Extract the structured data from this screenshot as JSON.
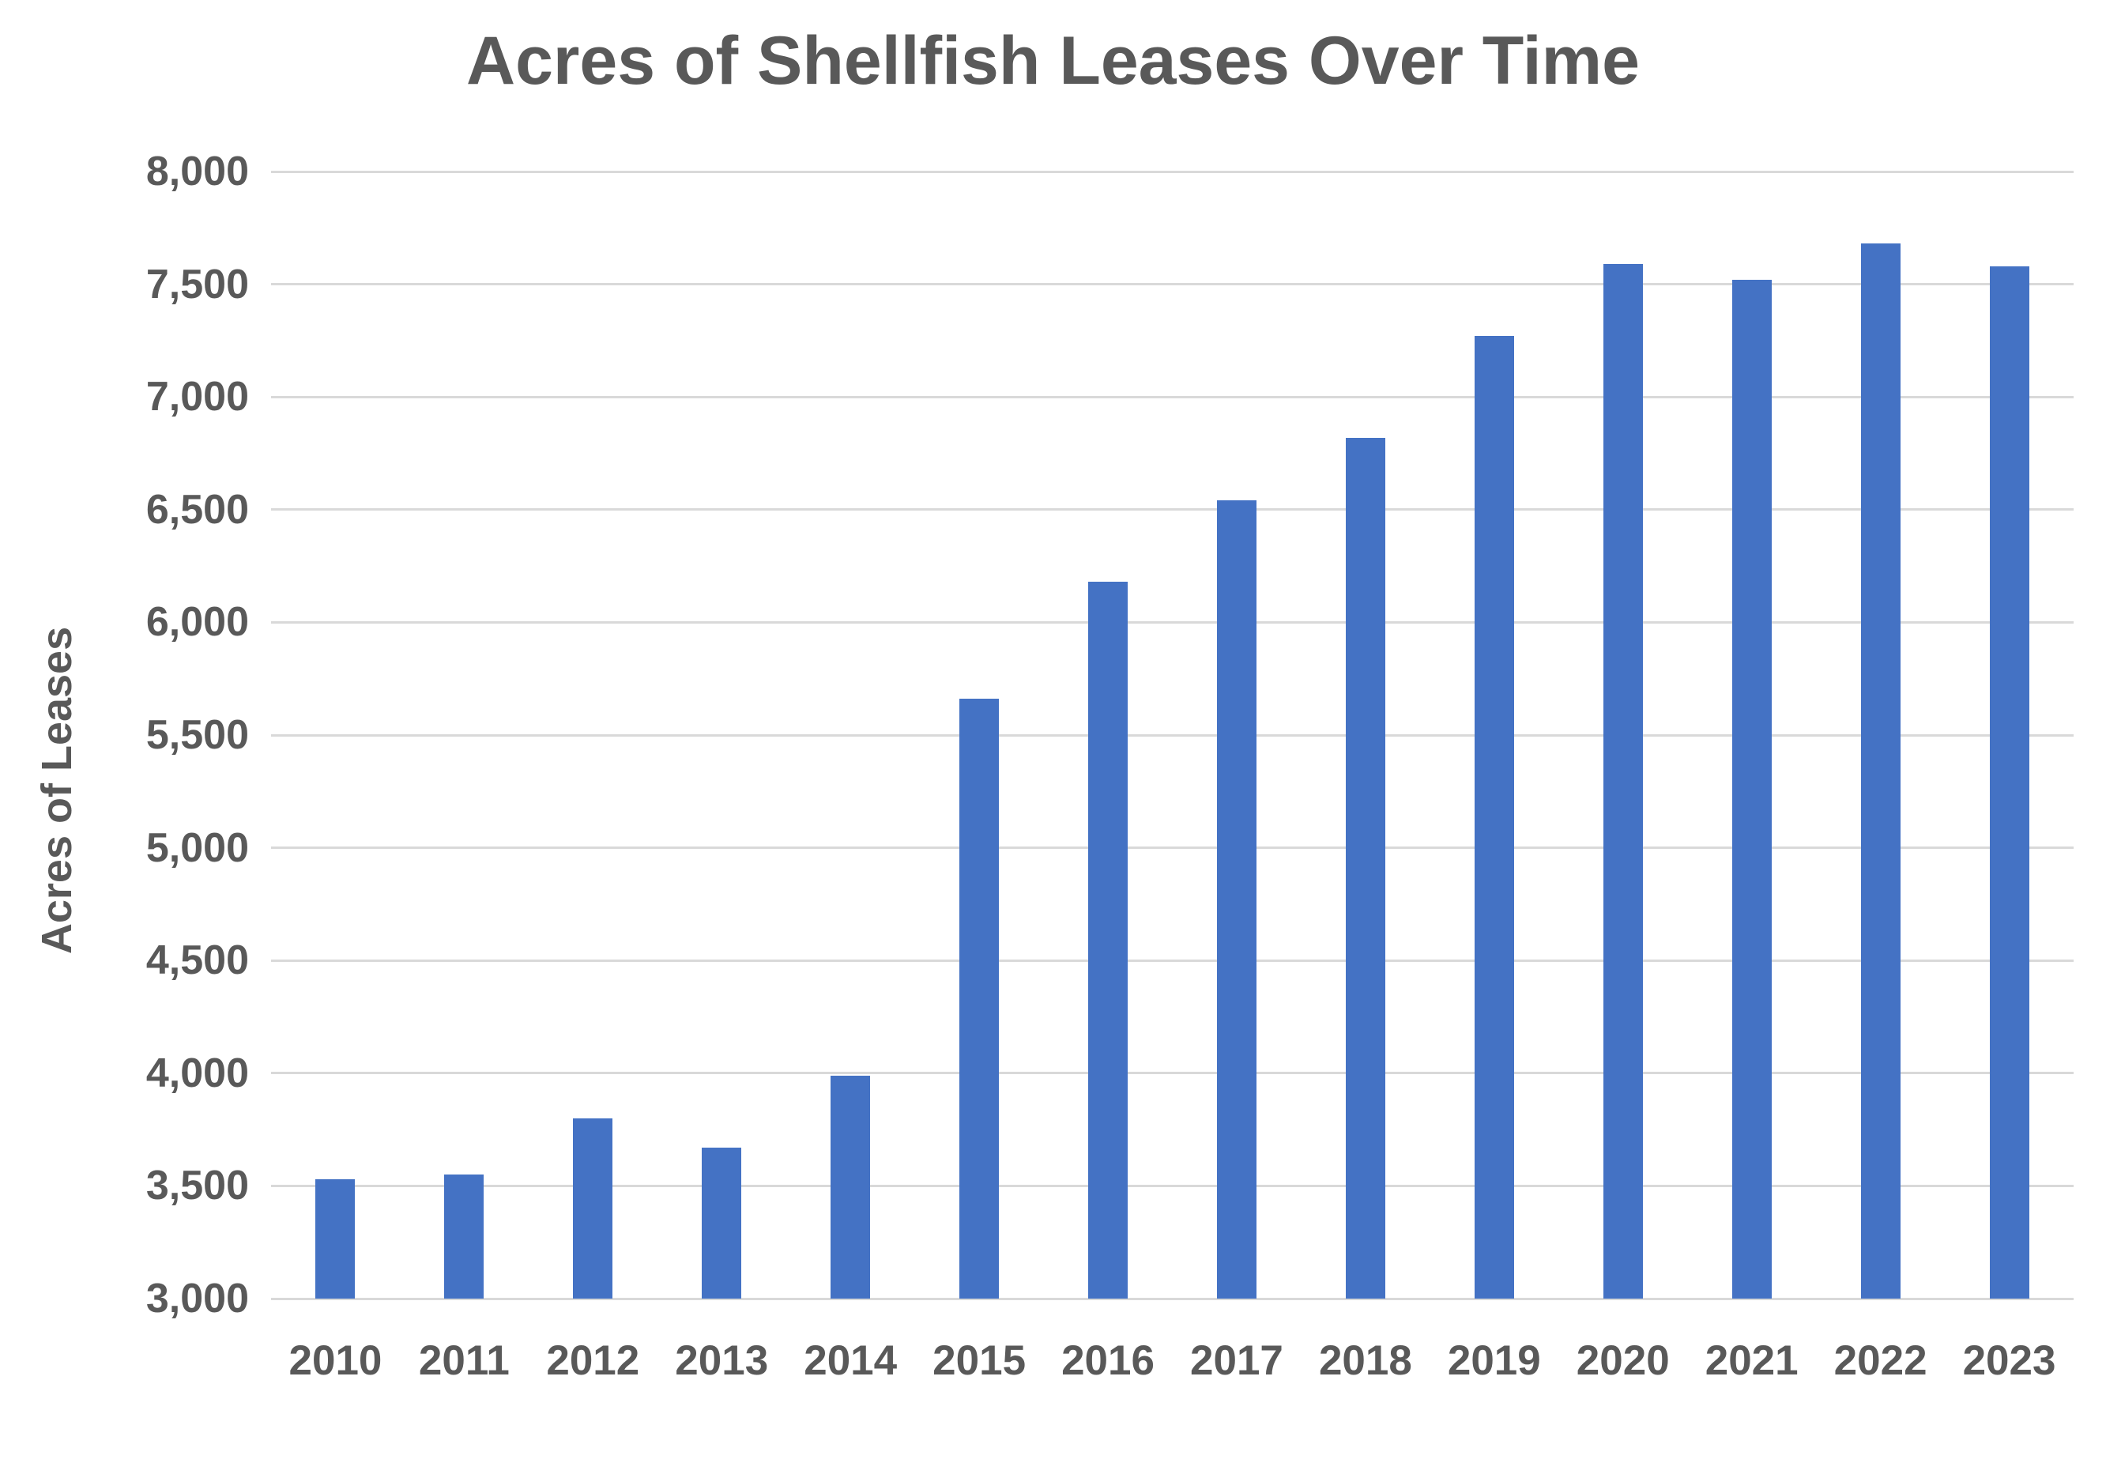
{
  "chart_data": {
    "type": "bar",
    "title": "Acres of Shellfish Leases Over Time",
    "xlabel": "",
    "ylabel": "Acres of Leases",
    "categories": [
      "2010",
      "2011",
      "2012",
      "2013",
      "2014",
      "2015",
      "2016",
      "2017",
      "2018",
      "2019",
      "2020",
      "2021",
      "2022",
      "2023"
    ],
    "values": [
      3530,
      3550,
      3800,
      3670,
      3990,
      5660,
      6180,
      6540,
      6820,
      7270,
      7590,
      7520,
      7680,
      7580
    ],
    "ylim": [
      3000,
      8000
    ],
    "ytick_values": [
      3000,
      3500,
      4000,
      4500,
      5000,
      5500,
      6000,
      6500,
      7000,
      7500,
      8000
    ],
    "ytick_labels": [
      "3,000",
      "3,500",
      "4,000",
      "4,500",
      "5,000",
      "5,500",
      "6,000",
      "6,500",
      "7,000",
      "7,500",
      "8,000"
    ],
    "grid": "horizontal",
    "legend": "none",
    "colors": {
      "bar": "#4472c4",
      "text": "#595959",
      "gridline": "#d9d9d9",
      "background": "#ffffff"
    }
  }
}
